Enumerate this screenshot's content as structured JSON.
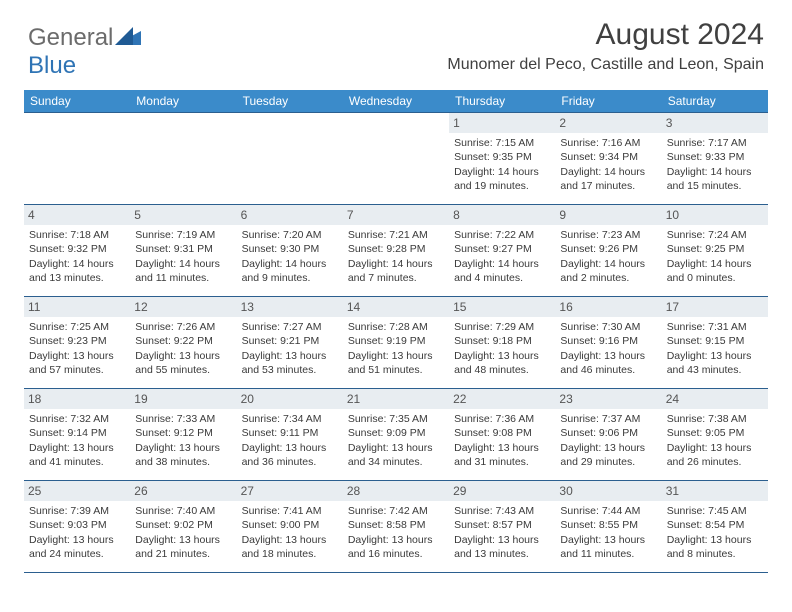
{
  "logo": {
    "part1": "General",
    "part2": "Blue"
  },
  "title": "August 2024",
  "location": "Munomer del Peco, Castille and Leon, Spain",
  "colors": {
    "header_bg": "#3b8bca",
    "header_text": "#ffffff",
    "border": "#2b5f8f",
    "daynum_bg": "#e8edf1",
    "logo_accent": "#2f74b5",
    "text": "#3a3a3a"
  },
  "day_headers": [
    "Sunday",
    "Monday",
    "Tuesday",
    "Wednesday",
    "Thursday",
    "Friday",
    "Saturday"
  ],
  "weeks": [
    [
      {
        "empty": true
      },
      {
        "empty": true
      },
      {
        "empty": true
      },
      {
        "empty": true
      },
      {
        "n": "1",
        "sr": "Sunrise: 7:15 AM",
        "ss": "Sunset: 9:35 PM",
        "dl1": "Daylight: 14 hours",
        "dl2": "and 19 minutes."
      },
      {
        "n": "2",
        "sr": "Sunrise: 7:16 AM",
        "ss": "Sunset: 9:34 PM",
        "dl1": "Daylight: 14 hours",
        "dl2": "and 17 minutes."
      },
      {
        "n": "3",
        "sr": "Sunrise: 7:17 AM",
        "ss": "Sunset: 9:33 PM",
        "dl1": "Daylight: 14 hours",
        "dl2": "and 15 minutes."
      }
    ],
    [
      {
        "n": "4",
        "sr": "Sunrise: 7:18 AM",
        "ss": "Sunset: 9:32 PM",
        "dl1": "Daylight: 14 hours",
        "dl2": "and 13 minutes."
      },
      {
        "n": "5",
        "sr": "Sunrise: 7:19 AM",
        "ss": "Sunset: 9:31 PM",
        "dl1": "Daylight: 14 hours",
        "dl2": "and 11 minutes."
      },
      {
        "n": "6",
        "sr": "Sunrise: 7:20 AM",
        "ss": "Sunset: 9:30 PM",
        "dl1": "Daylight: 14 hours",
        "dl2": "and 9 minutes."
      },
      {
        "n": "7",
        "sr": "Sunrise: 7:21 AM",
        "ss": "Sunset: 9:28 PM",
        "dl1": "Daylight: 14 hours",
        "dl2": "and 7 minutes."
      },
      {
        "n": "8",
        "sr": "Sunrise: 7:22 AM",
        "ss": "Sunset: 9:27 PM",
        "dl1": "Daylight: 14 hours",
        "dl2": "and 4 minutes."
      },
      {
        "n": "9",
        "sr": "Sunrise: 7:23 AM",
        "ss": "Sunset: 9:26 PM",
        "dl1": "Daylight: 14 hours",
        "dl2": "and 2 minutes."
      },
      {
        "n": "10",
        "sr": "Sunrise: 7:24 AM",
        "ss": "Sunset: 9:25 PM",
        "dl1": "Daylight: 14 hours",
        "dl2": "and 0 minutes."
      }
    ],
    [
      {
        "n": "11",
        "sr": "Sunrise: 7:25 AM",
        "ss": "Sunset: 9:23 PM",
        "dl1": "Daylight: 13 hours",
        "dl2": "and 57 minutes."
      },
      {
        "n": "12",
        "sr": "Sunrise: 7:26 AM",
        "ss": "Sunset: 9:22 PM",
        "dl1": "Daylight: 13 hours",
        "dl2": "and 55 minutes."
      },
      {
        "n": "13",
        "sr": "Sunrise: 7:27 AM",
        "ss": "Sunset: 9:21 PM",
        "dl1": "Daylight: 13 hours",
        "dl2": "and 53 minutes."
      },
      {
        "n": "14",
        "sr": "Sunrise: 7:28 AM",
        "ss": "Sunset: 9:19 PM",
        "dl1": "Daylight: 13 hours",
        "dl2": "and 51 minutes."
      },
      {
        "n": "15",
        "sr": "Sunrise: 7:29 AM",
        "ss": "Sunset: 9:18 PM",
        "dl1": "Daylight: 13 hours",
        "dl2": "and 48 minutes."
      },
      {
        "n": "16",
        "sr": "Sunrise: 7:30 AM",
        "ss": "Sunset: 9:16 PM",
        "dl1": "Daylight: 13 hours",
        "dl2": "and 46 minutes."
      },
      {
        "n": "17",
        "sr": "Sunrise: 7:31 AM",
        "ss": "Sunset: 9:15 PM",
        "dl1": "Daylight: 13 hours",
        "dl2": "and 43 minutes."
      }
    ],
    [
      {
        "n": "18",
        "sr": "Sunrise: 7:32 AM",
        "ss": "Sunset: 9:14 PM",
        "dl1": "Daylight: 13 hours",
        "dl2": "and 41 minutes."
      },
      {
        "n": "19",
        "sr": "Sunrise: 7:33 AM",
        "ss": "Sunset: 9:12 PM",
        "dl1": "Daylight: 13 hours",
        "dl2": "and 38 minutes."
      },
      {
        "n": "20",
        "sr": "Sunrise: 7:34 AM",
        "ss": "Sunset: 9:11 PM",
        "dl1": "Daylight: 13 hours",
        "dl2": "and 36 minutes."
      },
      {
        "n": "21",
        "sr": "Sunrise: 7:35 AM",
        "ss": "Sunset: 9:09 PM",
        "dl1": "Daylight: 13 hours",
        "dl2": "and 34 minutes."
      },
      {
        "n": "22",
        "sr": "Sunrise: 7:36 AM",
        "ss": "Sunset: 9:08 PM",
        "dl1": "Daylight: 13 hours",
        "dl2": "and 31 minutes."
      },
      {
        "n": "23",
        "sr": "Sunrise: 7:37 AM",
        "ss": "Sunset: 9:06 PM",
        "dl1": "Daylight: 13 hours",
        "dl2": "and 29 minutes."
      },
      {
        "n": "24",
        "sr": "Sunrise: 7:38 AM",
        "ss": "Sunset: 9:05 PM",
        "dl1": "Daylight: 13 hours",
        "dl2": "and 26 minutes."
      }
    ],
    [
      {
        "n": "25",
        "sr": "Sunrise: 7:39 AM",
        "ss": "Sunset: 9:03 PM",
        "dl1": "Daylight: 13 hours",
        "dl2": "and 24 minutes."
      },
      {
        "n": "26",
        "sr": "Sunrise: 7:40 AM",
        "ss": "Sunset: 9:02 PM",
        "dl1": "Daylight: 13 hours",
        "dl2": "and 21 minutes."
      },
      {
        "n": "27",
        "sr": "Sunrise: 7:41 AM",
        "ss": "Sunset: 9:00 PM",
        "dl1": "Daylight: 13 hours",
        "dl2": "and 18 minutes."
      },
      {
        "n": "28",
        "sr": "Sunrise: 7:42 AM",
        "ss": "Sunset: 8:58 PM",
        "dl1": "Daylight: 13 hours",
        "dl2": "and 16 minutes."
      },
      {
        "n": "29",
        "sr": "Sunrise: 7:43 AM",
        "ss": "Sunset: 8:57 PM",
        "dl1": "Daylight: 13 hours",
        "dl2": "and 13 minutes."
      },
      {
        "n": "30",
        "sr": "Sunrise: 7:44 AM",
        "ss": "Sunset: 8:55 PM",
        "dl1": "Daylight: 13 hours",
        "dl2": "and 11 minutes."
      },
      {
        "n": "31",
        "sr": "Sunrise: 7:45 AM",
        "ss": "Sunset: 8:54 PM",
        "dl1": "Daylight: 13 hours",
        "dl2": "and 8 minutes."
      }
    ]
  ]
}
